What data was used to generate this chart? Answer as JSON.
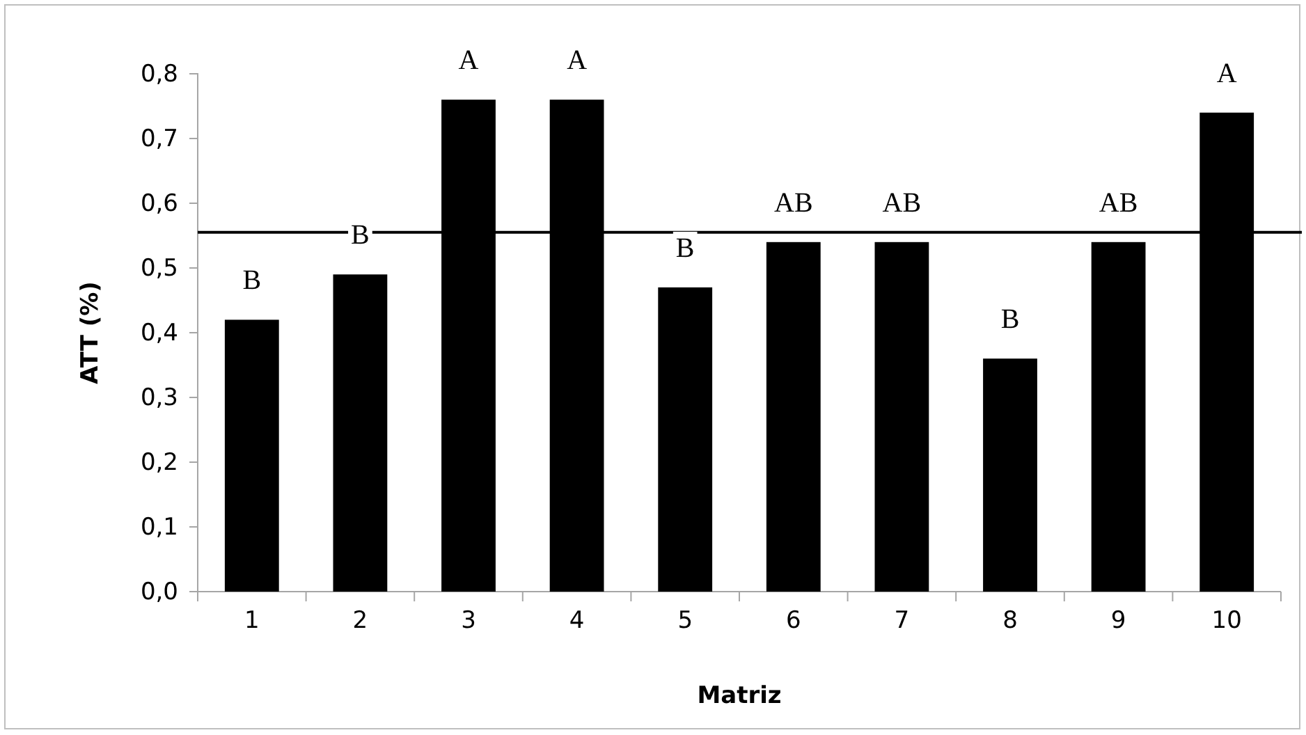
{
  "chart_data": {
    "type": "bar",
    "xlabel": "Matriz",
    "ylabel": "ATT (%)",
    "categories": [
      "1",
      "2",
      "3",
      "4",
      "5",
      "6",
      "7",
      "8",
      "9",
      "10"
    ],
    "values": [
      0.42,
      0.49,
      0.76,
      0.76,
      0.47,
      0.54,
      0.54,
      0.36,
      0.54,
      0.74
    ],
    "color": "#000000",
    "ylim": [
      0,
      0.8
    ],
    "yticks": [
      {
        "value": 0,
        "label": "0,0"
      },
      {
        "value": 0.1,
        "label": "0,1"
      },
      {
        "value": 0.2,
        "label": "0,2"
      },
      {
        "value": 0.3,
        "label": "0,3"
      },
      {
        "value": 0.4,
        "label": "0,4"
      },
      {
        "value": 0.5,
        "label": "0,5"
      },
      {
        "value": 0.6,
        "label": "0,6"
      },
      {
        "value": 0.7,
        "label": "0,7"
      },
      {
        "value": 0.8,
        "label": "0,8"
      }
    ],
    "ref_lines": [
      {
        "axis": "y",
        "value": 0.555,
        "color": "#000000"
      }
    ],
    "annotations": [
      {
        "text": "B",
        "x": "1",
        "y": 0.42
      },
      {
        "text": "B",
        "x": "2",
        "y": 0.49
      },
      {
        "text": "A",
        "x": "3",
        "y": 0.76
      },
      {
        "text": "A",
        "x": "4",
        "y": 0.76
      },
      {
        "text": "B",
        "x": "5",
        "y": 0.47
      },
      {
        "text": "AB",
        "x": "6",
        "y": 0.54
      },
      {
        "text": "AB",
        "x": "7",
        "y": 0.54
      },
      {
        "text": "B",
        "x": "8",
        "y": 0.36
      },
      {
        "text": "AB",
        "x": "9",
        "y": 0.54
      },
      {
        "text": "A",
        "x": "10",
        "y": 0.74
      }
    ],
    "grid": false
  }
}
